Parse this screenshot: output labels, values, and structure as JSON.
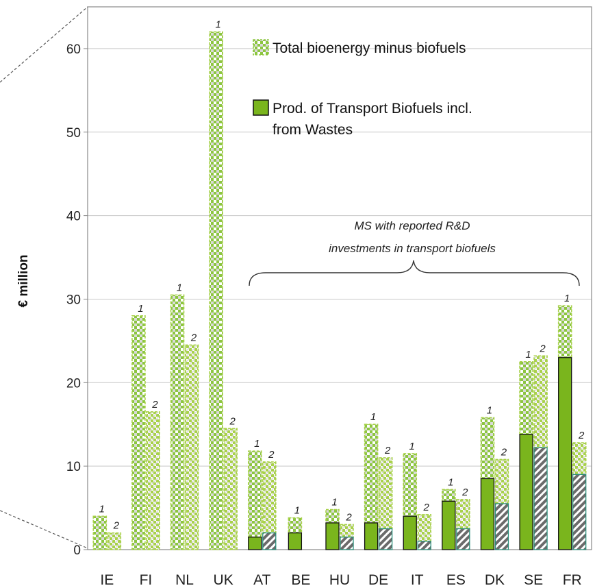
{
  "chart_data": {
    "type": "bar",
    "ylabel": "€ million",
    "ylim": [
      0,
      65
    ],
    "yticks": [
      "0",
      "10",
      "20",
      "30",
      "40",
      "50",
      "60"
    ],
    "grid": true,
    "categories": [
      "IE",
      "FI",
      "NL",
      "UK",
      "AT",
      "BE",
      "HU",
      "DE",
      "IT",
      "ES",
      "DK",
      "SE",
      "FR"
    ],
    "bar_groups": [
      {
        "category": "IE",
        "bars": [
          {
            "label": "1",
            "total": 4.0,
            "biofuels": 0
          },
          {
            "label": "2",
            "total": 2.0,
            "biofuels": 0
          }
        ]
      },
      {
        "category": "FI",
        "bars": [
          {
            "label": "1",
            "total": 28.0,
            "biofuels": 0
          },
          {
            "label": "2",
            "total": 16.5,
            "biofuels": 0
          }
        ]
      },
      {
        "category": "NL",
        "bars": [
          {
            "label": "1",
            "total": 30.5,
            "biofuels": 0
          },
          {
            "label": "2",
            "total": 24.5,
            "biofuels": 0
          }
        ]
      },
      {
        "category": "UK",
        "bars": [
          {
            "label": "1",
            "total": 62.0,
            "biofuels": 0
          },
          {
            "label": "2",
            "total": 14.5,
            "biofuels": 0
          }
        ]
      },
      {
        "category": "AT",
        "bars": [
          {
            "label": "1",
            "total": 11.8,
            "biofuels": 1.5
          },
          {
            "label": "2",
            "total": 10.5,
            "biofuels": 2.0
          }
        ]
      },
      {
        "category": "BE",
        "bars": [
          {
            "label": "1",
            "total": 3.8,
            "biofuels": 2.0
          }
        ]
      },
      {
        "category": "HU",
        "bars": [
          {
            "label": "1",
            "total": 4.8,
            "biofuels": 3.2
          },
          {
            "label": "2",
            "total": 3.0,
            "biofuels": 1.5
          }
        ]
      },
      {
        "category": "DE",
        "bars": [
          {
            "label": "1",
            "total": 15.0,
            "biofuels": 3.2
          },
          {
            "label": "2",
            "total": 11.0,
            "biofuels": 2.5
          }
        ]
      },
      {
        "category": "IT",
        "bars": [
          {
            "label": "1",
            "total": 11.5,
            "biofuels": 4.0
          },
          {
            "label": "2",
            "total": 4.2,
            "biofuels": 1.0
          }
        ]
      },
      {
        "category": "ES",
        "bars": [
          {
            "label": "1",
            "total": 7.2,
            "biofuels": 5.8
          },
          {
            "label": "2",
            "total": 6.0,
            "biofuels": 2.5
          }
        ]
      },
      {
        "category": "DK",
        "bars": [
          {
            "label": "1",
            "total": 15.8,
            "biofuels": 8.5
          },
          {
            "label": "2",
            "total": 10.8,
            "biofuels": 5.5
          }
        ]
      },
      {
        "category": "SE",
        "bars": [
          {
            "label": "1",
            "total": 22.5,
            "biofuels": 13.8
          },
          {
            "label": "2",
            "total": 23.2,
            "biofuels": 12.2
          }
        ]
      },
      {
        "category": "FR",
        "bars": [
          {
            "label": "1",
            "total": 29.2,
            "biofuels": 23.0
          },
          {
            "label": "2",
            "total": 12.8,
            "biofuels": 9.0
          }
        ]
      }
    ],
    "legend": {
      "placement": "top-right",
      "items": [
        {
          "label": "Total bioenergy minus biofuels"
        },
        {
          "label": "Prod. of Transport Biofuels incl.",
          "label_line2": "from Wastes"
        }
      ]
    },
    "annotation": {
      "line1": "MS with reported R&D",
      "line2": "investments in transport biofuels"
    },
    "colors": {
      "green": "#7ab51d",
      "green_light": "#a8d14a",
      "grey_hatch": "#7f7f7f",
      "teal_hatch": "#2a8f7a",
      "grid": "#c8c8c8",
      "axis": "#888888"
    }
  }
}
